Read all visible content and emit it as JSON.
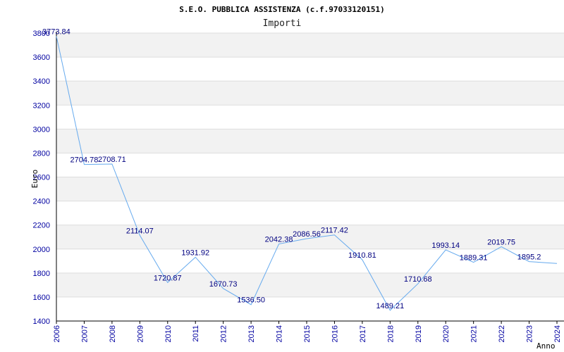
{
  "chart_data": {
    "type": "line",
    "title": "S.E.O. PUBBLICA ASSISTENZA (c.f.97033120151)",
    "subtitle": "Importi",
    "xlabel": "Anno",
    "ylabel": "Euro",
    "x": [
      "2006",
      "2007",
      "2008",
      "2009",
      "2010",
      "2011",
      "2012",
      "2013",
      "2014",
      "2015",
      "2016",
      "2017",
      "2018",
      "2019",
      "2020",
      "2021",
      "2022",
      "2023",
      "2024"
    ],
    "series": [
      {
        "values": [
          3773.84,
          2704.78,
          2708.71,
          2114.07,
          1720.87,
          1931.92,
          1670.73,
          1536.5,
          2042.38,
          2086.56,
          2117.42,
          1910.81,
          1489.21,
          1710.68,
          1993.14,
          1889.31,
          2019.75,
          1895.2,
          1880.0
        ],
        "labels": [
          "3773.84",
          "2704.78",
          "2708.71",
          "2114.07",
          "1720.87",
          "1931.92",
          "1670.73",
          "1536.50",
          "2042.38",
          "2086.56",
          "2117.42",
          "1910.81",
          "1489.21",
          "1710.68",
          "1993.14",
          "1889.31",
          "2019.75",
          "1895.2",
          ""
        ],
        "color": "#66aaee"
      }
    ],
    "ylim": [
      1400,
      3800
    ],
    "yticks": [
      "1400",
      "1600",
      "1800",
      "2000",
      "2200",
      "2400",
      "2600",
      "2800",
      "3000",
      "3200",
      "3400",
      "3600",
      "3800"
    ],
    "grid": true,
    "band_colors": [
      "#f2f2f2",
      "#ffffff"
    ],
    "gridline_color": "#dddddd",
    "axis_color": "#000000",
    "tick_label_color": "#0000a0",
    "data_label_color": "#000080"
  }
}
